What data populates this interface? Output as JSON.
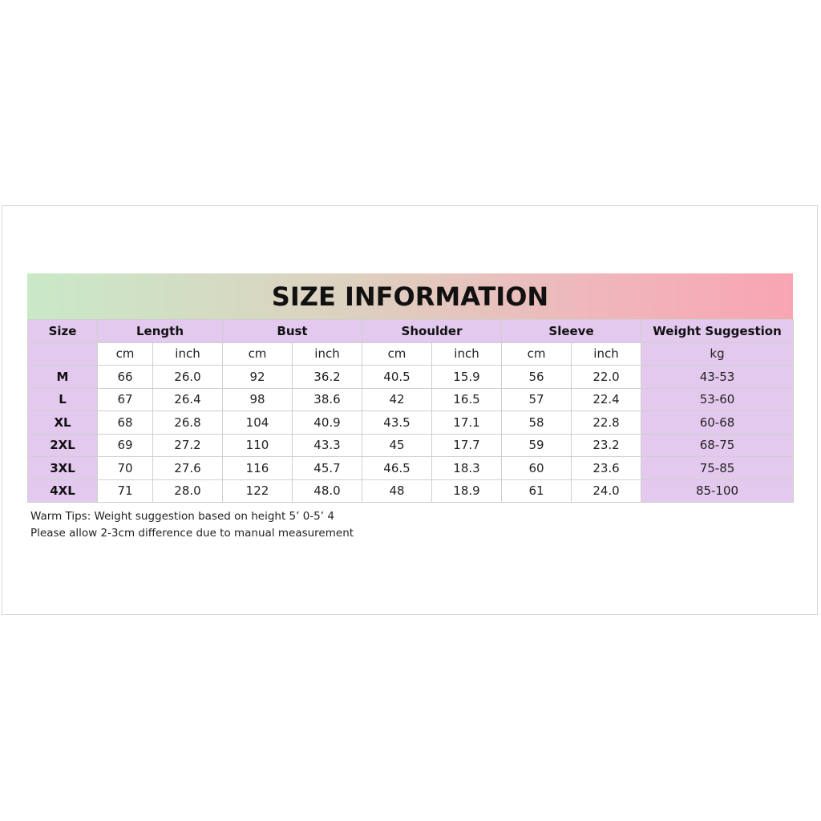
{
  "header": {
    "title": "SIZE INFORMATION"
  },
  "table": {
    "headers": [
      "Size",
      "Length",
      "Bust",
      "Shoulder",
      "Sleeve",
      "Weight Suggestion"
    ],
    "units": [
      "cm",
      "inch",
      "cm",
      "inch",
      "cm",
      "inch",
      "cm",
      "inch",
      "kg"
    ],
    "rows": [
      [
        "M",
        "66",
        "26.0",
        "92",
        "36.2",
        "40.5",
        "15.9",
        "56",
        "22.0",
        "43-53"
      ],
      [
        "L",
        "67",
        "26.4",
        "98",
        "38.6",
        "42",
        "16.5",
        "57",
        "22.4",
        "53-60"
      ],
      [
        "XL",
        "68",
        "26.8",
        "104",
        "40.9",
        "43.5",
        "17.1",
        "58",
        "22.8",
        "60-68"
      ],
      [
        "2XL",
        "69",
        "27.2",
        "110",
        "43.3",
        "45",
        "17.7",
        "59",
        "23.2",
        "68-75"
      ],
      [
        "3XL",
        "70",
        "27.6",
        "116",
        "45.7",
        "46.5",
        "18.3",
        "60",
        "23.6",
        "75-85"
      ],
      [
        "4XL",
        "71",
        "28.0",
        "122",
        "48.0",
        "48",
        "18.9",
        "61",
        "24.0",
        "85-100"
      ]
    ]
  },
  "notes": [
    "Warm Tips: Weight suggestion based on height 5’ 0-5’ 4",
    "Please allow 2-3cm difference due to manual measurement"
  ]
}
